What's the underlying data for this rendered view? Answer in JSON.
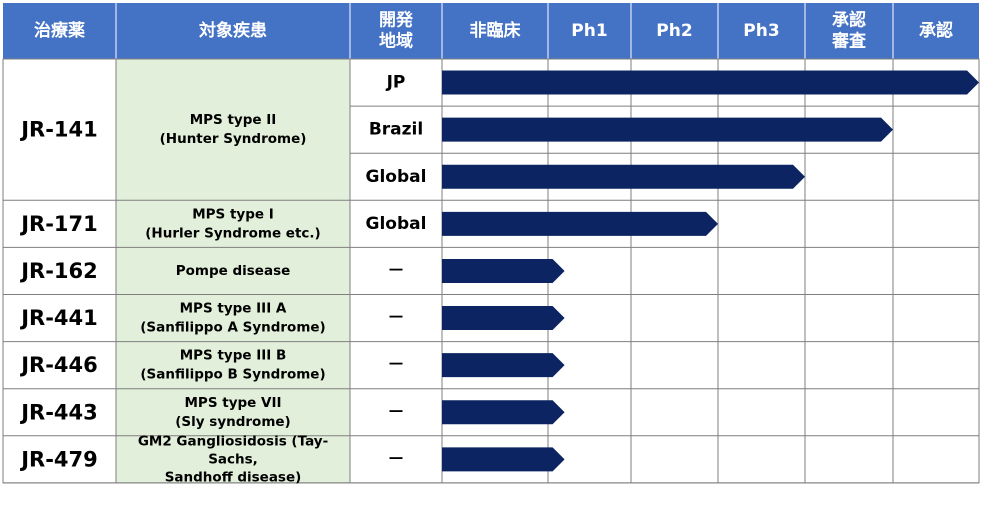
{
  "colors": {
    "header_bg": "#4472C4",
    "header_text": "#ffffff",
    "disease_bg": "#E2EFDA",
    "bar": "#0C2461",
    "grid": "#7f7f7f",
    "text": "#000000"
  },
  "headers": {
    "drug": [
      "治療薬"
    ],
    "disease": [
      "対象疾患"
    ],
    "region": [
      "開発",
      "地域"
    ],
    "stages": [
      [
        "非臨床"
      ],
      [
        "Ph1"
      ],
      [
        "Ph2"
      ],
      [
        "Ph3"
      ],
      [
        "承認",
        "審査"
      ],
      [
        "承認"
      ]
    ]
  },
  "chart_data": {
    "type": "table",
    "stage_scale": [
      "非臨床",
      "Ph1",
      "Ph2",
      "Ph3",
      "承認審査",
      "承認"
    ],
    "groups": [
      {
        "drug": "JR-141",
        "disease": [
          "MPS type II",
          "(Hunter Syndrome)"
        ],
        "entries": [
          {
            "region": "JP",
            "progress": 6.0
          },
          {
            "region": "Brazil",
            "progress": 5.0
          },
          {
            "region": "Global",
            "progress": 4.0
          }
        ]
      },
      {
        "drug": "JR-171",
        "disease": [
          "MPS type I",
          "(Hurler Syndrome etc.)"
        ],
        "entries": [
          {
            "region": "Global",
            "progress": 3.0
          }
        ]
      },
      {
        "drug": "JR-162",
        "disease": [
          "Pompe disease"
        ],
        "entries": [
          {
            "region": "－",
            "progress": 1.2
          }
        ]
      },
      {
        "drug": "JR-441",
        "disease": [
          "MPS type III A",
          "(Sanfilippo A Syndrome)"
        ],
        "entries": [
          {
            "region": "－",
            "progress": 1.2
          }
        ]
      },
      {
        "drug": "JR-446",
        "disease": [
          "MPS type III B",
          "(Sanfilippo B Syndrome)"
        ],
        "entries": [
          {
            "region": "－",
            "progress": 1.2
          }
        ]
      },
      {
        "drug": "JR-443",
        "disease": [
          "MPS type VII",
          "(Sly syndrome)"
        ],
        "entries": [
          {
            "region": "－",
            "progress": 1.2
          }
        ]
      },
      {
        "drug": "JR-479",
        "disease": [
          "GM2 Gangliosidosis (Tay-",
          "Sachs,",
          "Sandhoff disease)"
        ],
        "entries": [
          {
            "region": "－",
            "progress": 1.2
          }
        ]
      }
    ]
  }
}
